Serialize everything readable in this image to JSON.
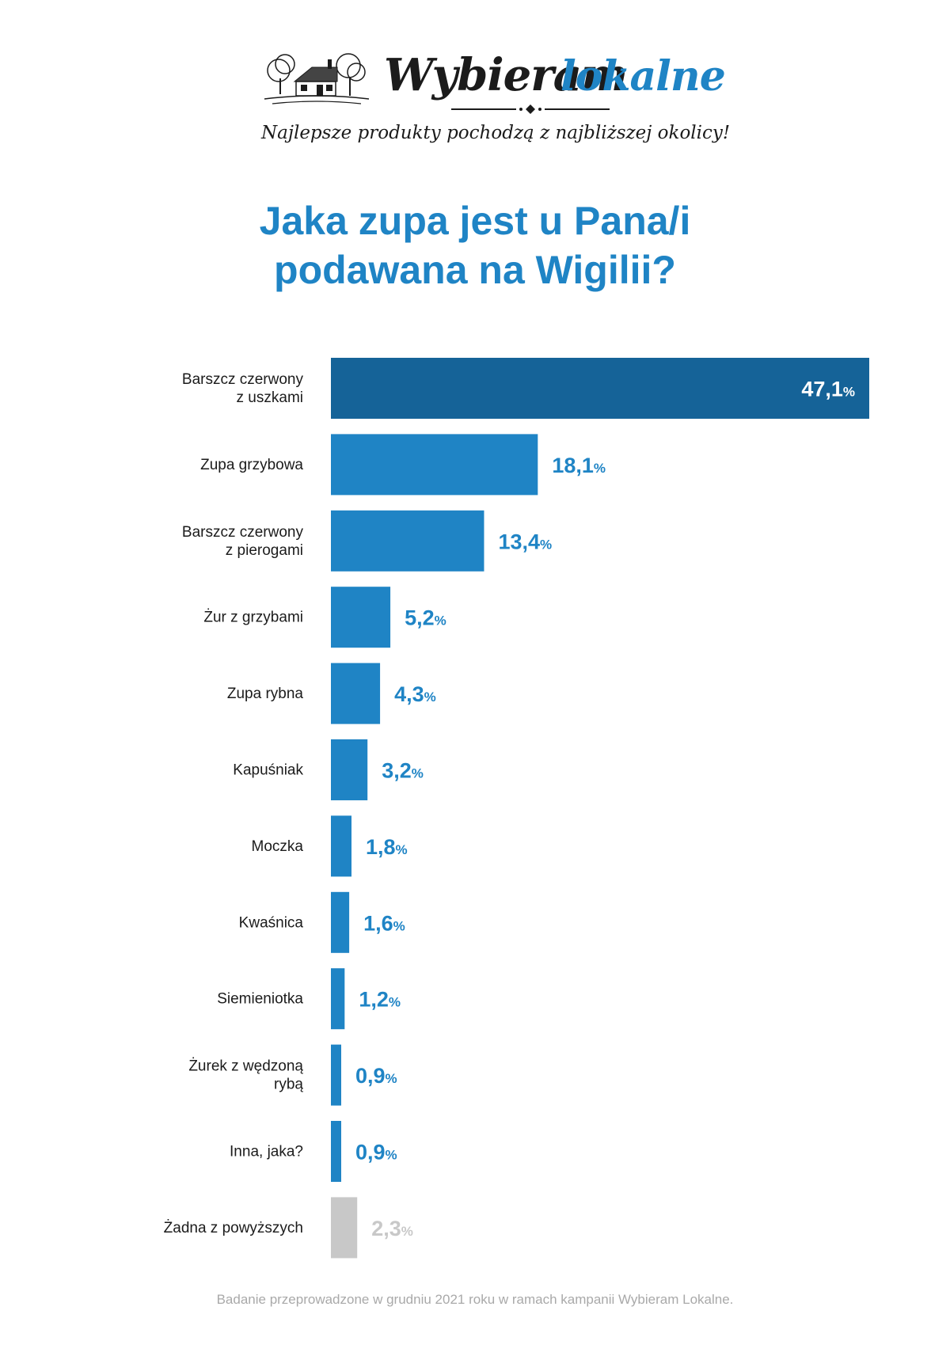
{
  "logo": {
    "word1": "Wybieram",
    "word2": "lokalne",
    "tagline": "Najlepsze produkty pochodzą z najbliższej okolicy!",
    "icon": "farmhouse-with-trees-icon"
  },
  "title_line1": "Jaka zupa jest u Pana/i",
  "title_line2": "podawana na Wigilii?",
  "footnote": "Badanie przeprowadzone w grudniu 2021 roku w ramach kampanii Wybieram Lokalne.",
  "colors": {
    "accent": "#1f84c5",
    "top_bar": "#156398",
    "bar": "#1f84c5",
    "none_bar": "#c8c8c8",
    "none_text": "#c8c8c8",
    "text": "#1b1b1b"
  },
  "chart_data": {
    "type": "bar",
    "orientation": "horizontal",
    "title": "",
    "xlabel": "",
    "ylabel": "",
    "unit": "%",
    "xlim": [
      0,
      47.1
    ],
    "grid": false,
    "legend": "none",
    "categories": [
      [
        "Barszcz czerwony",
        "z uszkami"
      ],
      [
        "Zupa grzybowa"
      ],
      [
        "Barszcz czerwony",
        "z pierogami"
      ],
      [
        "Żur z grzybami"
      ],
      [
        "Zupa rybna"
      ],
      [
        "Kapuśniak"
      ],
      [
        "Moczka"
      ],
      [
        "Kwaśnica"
      ],
      [
        "Siemieniotka"
      ],
      [
        "Żurek z wędzoną",
        "rybą"
      ],
      [
        "Inna, jaka?"
      ],
      [
        "Żadna z powyższych"
      ]
    ],
    "values": [
      47.1,
      18.1,
      13.4,
      5.2,
      4.3,
      3.2,
      1.8,
      1.6,
      1.2,
      0.9,
      0.9,
      2.3
    ],
    "value_labels": [
      "47,1",
      "18,1",
      "13,4",
      "5,2",
      "4,3",
      "3,2",
      "1,8",
      "1,6",
      "1,2",
      "0,9",
      "0,9",
      "2,3"
    ],
    "percent_sign": "%"
  }
}
